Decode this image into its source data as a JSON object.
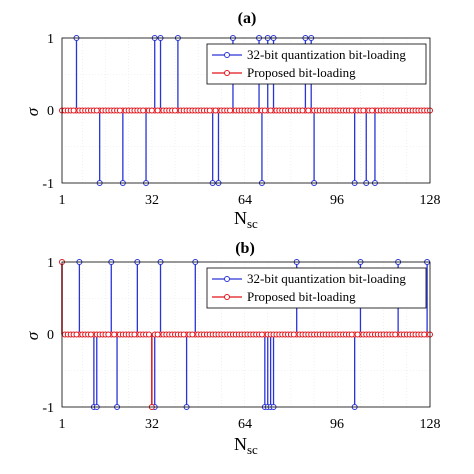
{
  "colors": {
    "series_32bit": "#2a34d6",
    "series_proposed": "#e0141b",
    "grid": "#e6e6e6",
    "axes": "#000000"
  },
  "chart_data": [
    {
      "type": "stem",
      "title": "(a)",
      "xlabel": "N",
      "xlabel_sub": "sc",
      "ylabel": "σ",
      "xlim": [
        1,
        128
      ],
      "ylim": [
        -1,
        1
      ],
      "xticks": [
        1,
        32,
        64,
        96,
        128
      ],
      "yticks": [
        1,
        0,
        -1
      ],
      "grid": true,
      "legend_position": "top-right",
      "series": [
        {
          "name": "32-bit quantization bit-loading",
          "x": [
            6,
            14,
            22,
            30,
            33,
            35,
            41,
            53,
            55,
            60,
            69,
            70,
            72,
            74,
            85,
            87,
            88,
            102,
            106,
            109
          ],
          "values": [
            1,
            -1,
            -1,
            -1,
            1,
            1,
            1,
            -1,
            -1,
            1,
            1,
            -1,
            1,
            1,
            1,
            1,
            -1,
            -1,
            -1,
            -1
          ]
        },
        {
          "name": "Proposed bit-loading",
          "x": [],
          "values": []
        }
      ]
    },
    {
      "type": "stem",
      "title": "(b)",
      "xlabel": "N",
      "xlabel_sub": "sc",
      "ylabel": "σ",
      "xlim": [
        1,
        128
      ],
      "ylim": [
        -1,
        1
      ],
      "xticks": [
        1,
        32,
        64,
        96,
        128
      ],
      "yticks": [
        1,
        0,
        -1
      ],
      "grid": true,
      "legend_position": "top-right",
      "series": [
        {
          "name": "32-bit quantization bit-loading",
          "x": [
            7,
            12,
            13,
            18,
            20,
            27,
            33,
            35,
            44,
            47,
            71,
            72,
            73,
            74,
            82,
            102,
            104,
            117,
            127
          ],
          "values": [
            1,
            -1,
            -1,
            1,
            -1,
            1,
            -1,
            1,
            -1,
            1,
            -1,
            -1,
            -1,
            -1,
            1,
            -1,
            1,
            1,
            1
          ]
        },
        {
          "name": "Proposed bit-loading",
          "x": [
            1,
            32
          ],
          "values": [
            1,
            -1
          ]
        }
      ]
    }
  ]
}
